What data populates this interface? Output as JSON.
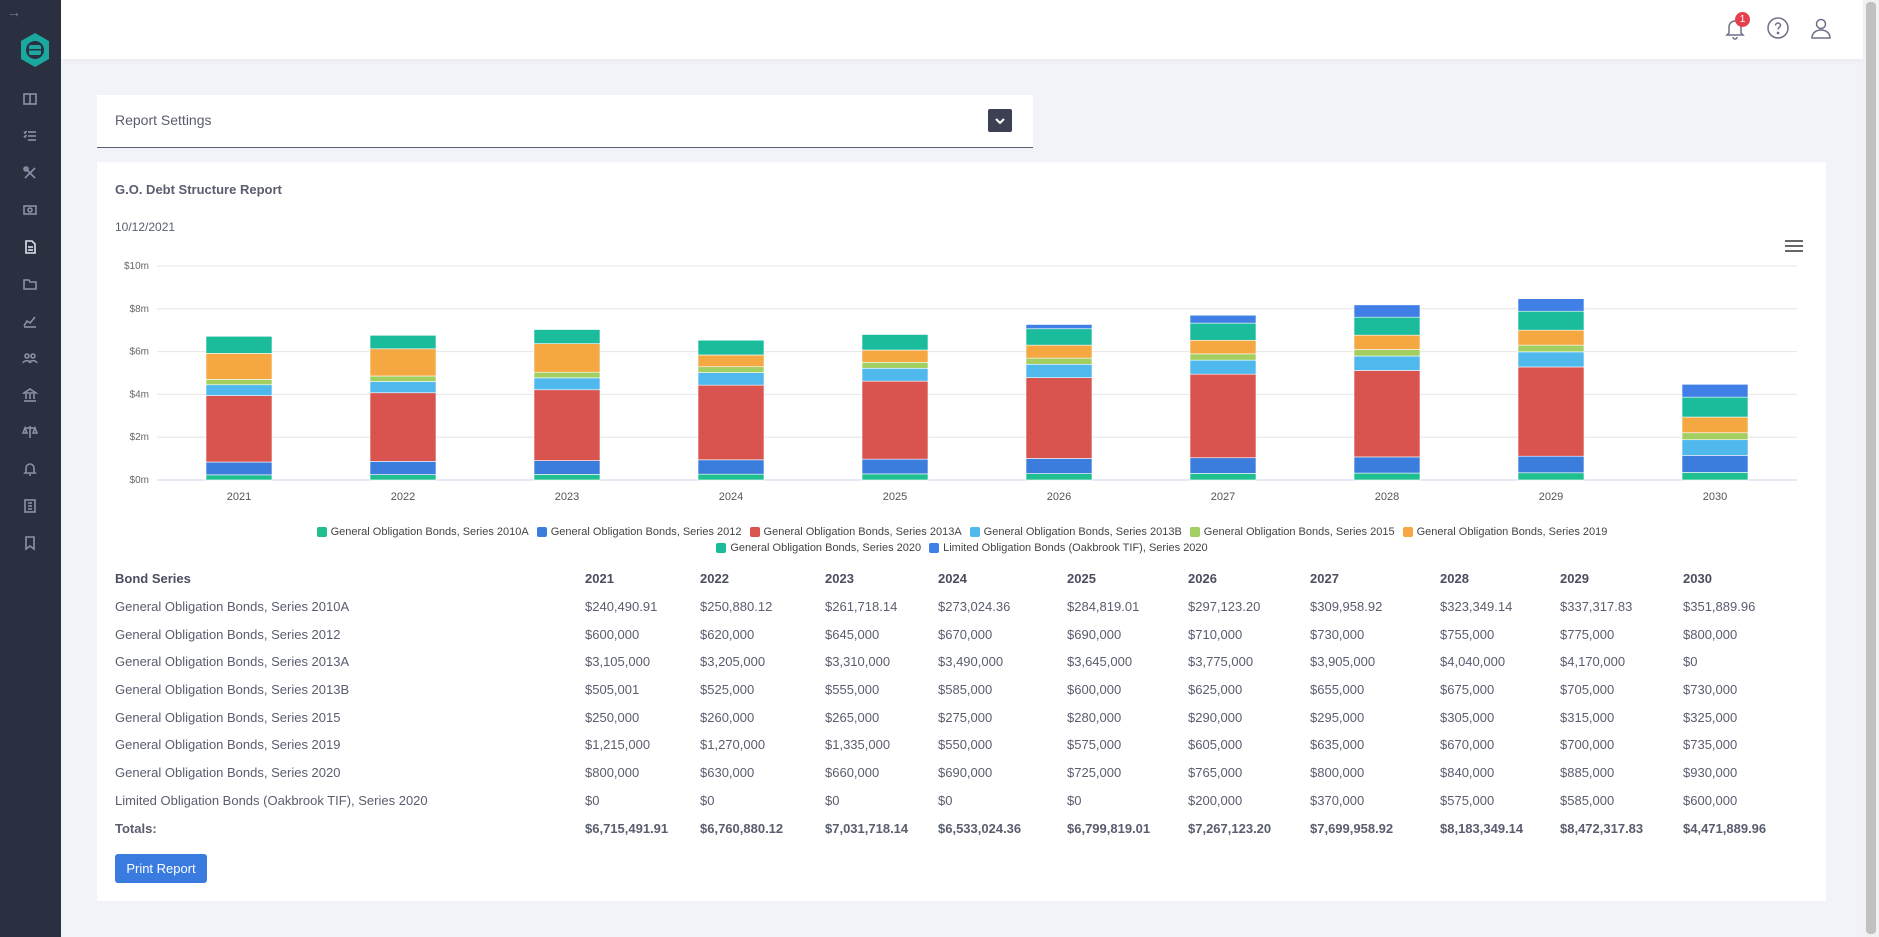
{
  "topbar": {
    "notification_count": "1"
  },
  "settings": {
    "title": "Report Settings"
  },
  "report": {
    "title": "G.O. Debt Structure Report",
    "date": "10/12/2021",
    "print_label": "Print Report"
  },
  "chart_data": {
    "type": "bar",
    "stacked": true,
    "categories": [
      "2021",
      "2022",
      "2023",
      "2024",
      "2025",
      "2026",
      "2027",
      "2028",
      "2029",
      "2030"
    ],
    "y_tick_labels": [
      "$0m",
      "$2m",
      "$4m",
      "$6m",
      "$8m",
      "$10m"
    ],
    "ylim": [
      0,
      10000000
    ],
    "series": [
      {
        "name": "General Obligation Bonds, Series 2010A",
        "color": "#1fbf8f",
        "values": [
          240490.91,
          250880.12,
          261718.14,
          273024.36,
          284819.01,
          297123.2,
          309958.92,
          323349.14,
          337317.83,
          351889.96
        ]
      },
      {
        "name": "General Obligation Bonds, Series 2012",
        "color": "#3b7ddd",
        "values": [
          600000,
          620000,
          645000,
          670000,
          690000,
          710000,
          730000,
          755000,
          775000,
          800000
        ]
      },
      {
        "name": "General Obligation Bonds, Series 2013A",
        "color": "#d9534f",
        "values": [
          3105000,
          3205000,
          3310000,
          3490000,
          3645000,
          3775000,
          3905000,
          4040000,
          4170000,
          0
        ]
      },
      {
        "name": "General Obligation Bonds, Series 2013B",
        "color": "#4fb9ee",
        "values": [
          505001,
          525000,
          555000,
          585000,
          600000,
          625000,
          655000,
          675000,
          705000,
          730000
        ]
      },
      {
        "name": "General Obligation Bonds, Series 2015",
        "color": "#a3cf62",
        "values": [
          250000,
          260000,
          265000,
          275000,
          280000,
          290000,
          295000,
          305000,
          315000,
          325000
        ]
      },
      {
        "name": "General Obligation Bonds, Series 2019",
        "color": "#f5a742",
        "values": [
          1215000,
          1270000,
          1335000,
          550000,
          575000,
          605000,
          635000,
          670000,
          700000,
          735000
        ]
      },
      {
        "name": "General Obligation Bonds, Series 2020",
        "color": "#1abc9c",
        "values": [
          800000,
          630000,
          660000,
          690000,
          725000,
          765000,
          800000,
          840000,
          885000,
          930000
        ]
      },
      {
        "name": "Limited Obligation Bonds (Oakbrook TIF), Series 2020",
        "color": "#3f7fe6",
        "values": [
          0,
          0,
          0,
          0,
          0,
          200000,
          370000,
          575000,
          585000,
          600000
        ]
      }
    ]
  },
  "table": {
    "header": [
      "Bond Series",
      "2021",
      "2022",
      "2023",
      "2024",
      "2025",
      "2026",
      "2027",
      "2028",
      "2029",
      "2030"
    ],
    "rows": [
      [
        "General Obligation Bonds, Series 2010A",
        "$240,490.91",
        "$250,880.12",
        "$261,718.14",
        "$273,024.36",
        "$284,819.01",
        "$297,123.20",
        "$309,958.92",
        "$323,349.14",
        "$337,317.83",
        "$351,889.96"
      ],
      [
        "General Obligation Bonds, Series 2012",
        "$600,000",
        "$620,000",
        "$645,000",
        "$670,000",
        "$690,000",
        "$710,000",
        "$730,000",
        "$755,000",
        "$775,000",
        "$800,000"
      ],
      [
        "General Obligation Bonds, Series 2013A",
        "$3,105,000",
        "$3,205,000",
        "$3,310,000",
        "$3,490,000",
        "$3,645,000",
        "$3,775,000",
        "$3,905,000",
        "$4,040,000",
        "$4,170,000",
        "$0"
      ],
      [
        "General Obligation Bonds, Series 2013B",
        "$505,001",
        "$525,000",
        "$555,000",
        "$585,000",
        "$600,000",
        "$625,000",
        "$655,000",
        "$675,000",
        "$705,000",
        "$730,000"
      ],
      [
        "General Obligation Bonds, Series 2015",
        "$250,000",
        "$260,000",
        "$265,000",
        "$275,000",
        "$280,000",
        "$290,000",
        "$295,000",
        "$305,000",
        "$315,000",
        "$325,000"
      ],
      [
        "General Obligation Bonds, Series 2019",
        "$1,215,000",
        "$1,270,000",
        "$1,335,000",
        "$550,000",
        "$575,000",
        "$605,000",
        "$635,000",
        "$670,000",
        "$700,000",
        "$735,000"
      ],
      [
        "General Obligation Bonds, Series 2020",
        "$800,000",
        "$630,000",
        "$660,000",
        "$690,000",
        "$725,000",
        "$765,000",
        "$800,000",
        "$840,000",
        "$885,000",
        "$930,000"
      ],
      [
        "Limited Obligation Bonds (Oakbrook TIF), Series 2020",
        "$0",
        "$0",
        "$0",
        "$0",
        "$0",
        "$200,000",
        "$370,000",
        "$575,000",
        "$585,000",
        "$600,000"
      ]
    ],
    "totals": [
      "Totals:",
      "$6,715,491.91",
      "$6,760,880.12",
      "$7,031,718.14",
      "$6,533,024.36",
      "$6,799,819.01",
      "$7,267,123.20",
      "$7,699,958.92",
      "$8,183,349.14",
      "$8,472,317.83",
      "$4,471,889.96"
    ]
  }
}
